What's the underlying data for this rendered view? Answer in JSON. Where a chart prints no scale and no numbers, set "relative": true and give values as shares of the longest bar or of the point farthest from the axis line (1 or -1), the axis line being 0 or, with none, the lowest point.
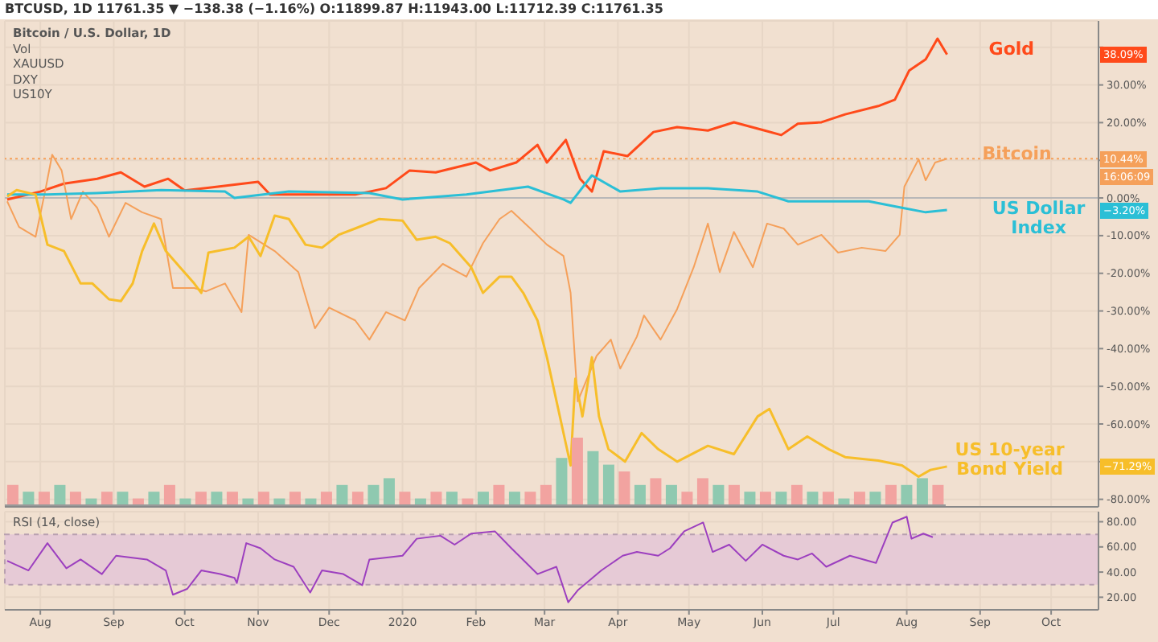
{
  "chart_data": [
    {
      "type": "line",
      "title": "BTCUSD, 1D 11761.35 ▼ −138.38 (−1.16%) O:11899.87 H:11943.00 L:11712.39 C:11761.35",
      "annotations": [
        "Bitcoin / U.S. Dollar, 1D",
        "Vol",
        "XAUUSD",
        "DXY",
        "US10Y",
        "38.09%",
        "10.44%",
        "16:06:09",
        "−3.20%",
        "−71.29%"
      ],
      "xlim": [
        "2019-07-17",
        "2020-10-21"
      ],
      "xticks": [
        {
          "value": "2019-08-01",
          "label": null
        },
        {
          "value": "2019-09-01",
          "label": null
        },
        {
          "value": "2019-10-01",
          "label": null
        },
        {
          "value": "2019-11-01",
          "label": null
        },
        {
          "value": "2019-12-01",
          "label": null
        },
        {
          "value": "2020-01-01",
          "label": null
        },
        {
          "value": "2020-02-01",
          "label": null
        },
        {
          "value": "2020-03-01",
          "label": null
        },
        {
          "value": "2020-04-01",
          "label": null
        },
        {
          "value": "2020-05-01",
          "label": null
        },
        {
          "value": "2020-06-01",
          "label": null
        },
        {
          "value": "2020-07-01",
          "label": null
        },
        {
          "value": "2020-08-01",
          "label": null
        },
        {
          "value": "2020-09-01",
          "label": null
        },
        {
          "value": "2020-10-01",
          "label": null
        }
      ],
      "ylim": [
        -82,
        47
      ],
      "yticks": [
        {
          "value": 40,
          "label": null
        },
        {
          "value": 30,
          "label": "30.00%"
        },
        {
          "value": 20,
          "label": "20.00%"
        },
        {
          "value": 10,
          "label": null
        },
        {
          "value": 0,
          "label": "0.00%"
        },
        {
          "value": -10,
          "label": "-10.00%"
        },
        {
          "value": -20,
          "label": "-20.00%"
        },
        {
          "value": -30,
          "label": "-30.00%"
        },
        {
          "value": -40,
          "label": "-40.00%"
        },
        {
          "value": -50,
          "label": "-50.00%"
        },
        {
          "value": -60,
          "label": "-60.00%"
        },
        {
          "value": -70,
          "label": null
        },
        {
          "value": -80,
          "label": "-80.00%"
        }
      ],
      "tick_labels": "y",
      "grid": true,
      "legend": "right",
      "marker": "none",
      "ref_lines": [
        {
          "axis": "y",
          "value": 10.44,
          "color": "#f5a05a",
          "line_style": "dotted"
        },
        {
          "axis": "y",
          "value": 0,
          "color": "#b8b8b8",
          "line_style": "solid"
        }
      ],
      "series": [
        {
          "name": "Gold",
          "color": "#ff4a1a",
          "x": [
            "2019-07-18",
            "2019-08-01",
            "2019-08-11",
            "2019-08-25",
            "2019-09-04",
            "2019-09-14",
            "2019-09-24",
            "2019-10-01",
            "2019-10-15",
            "2019-11-01",
            "2019-11-06",
            "2019-11-21",
            "2019-12-05",
            "2019-12-12",
            "2019-12-25",
            "2020-01-04",
            "2020-01-15",
            "2020-02-01",
            "2020-02-07",
            "2020-02-18",
            "2020-02-27",
            "2020-03-02",
            "2020-03-10",
            "2020-03-16",
            "2020-03-21",
            "2020-03-26",
            "2020-04-05",
            "2020-04-16",
            "2020-04-26",
            "2020-05-09",
            "2020-05-20",
            "2020-06-02",
            "2020-06-09",
            "2020-06-16",
            "2020-06-26",
            "2020-07-06",
            "2020-07-20",
            "2020-07-27",
            "2020-08-02",
            "2020-08-09",
            "2020-08-14",
            "2020-08-18"
          ],
          "values": [
            -0.4,
            1.7,
            3.8,
            5.1,
            6.8,
            3,
            5.1,
            2,
            3,
            4.3,
            0.9,
            0.9,
            0.9,
            0.9,
            2.6,
            7.3,
            6.8,
            9.4,
            7.3,
            9.4,
            14.1,
            9.4,
            15.4,
            5.1,
            1.7,
            12.4,
            11.1,
            17.5,
            18.8,
            17.9,
            20.1,
            17.9,
            16.7,
            19.7,
            20.1,
            22.2,
            24.4,
            26.1,
            33.8,
            36.8,
            42.3,
            38.09
          ]
        },
        {
          "name": "Bitcoin",
          "color": "#f5a05a",
          "x": [
            "2019-07-18",
            "2019-07-23",
            "2019-07-30",
            "2019-08-03",
            "2019-08-06",
            "2019-08-10",
            "2019-08-14",
            "2019-08-19",
            "2019-08-25",
            "2019-08-30",
            "2019-09-06",
            "2019-09-13",
            "2019-09-21",
            "2019-09-26",
            "2019-10-05",
            "2019-10-10",
            "2019-10-18",
            "2019-10-25",
            "2019-10-28",
            "2019-11-08",
            "2019-11-18",
            "2019-11-25",
            "2019-12-01",
            "2019-12-12",
            "2019-12-18",
            "2019-12-25",
            "2020-01-02",
            "2020-01-08",
            "2020-01-18",
            "2020-01-28",
            "2020-02-04",
            "2020-02-11",
            "2020-02-16",
            "2020-02-24",
            "2020-03-02",
            "2020-03-09",
            "2020-03-12",
            "2020-03-15",
            "2020-03-23",
            "2020-03-29",
            "2020-04-02",
            "2020-04-09",
            "2020-04-12",
            "2020-04-19",
            "2020-04-26",
            "2020-05-03",
            "2020-05-09",
            "2020-05-14",
            "2020-05-20",
            "2020-05-28",
            "2020-06-03",
            "2020-06-10",
            "2020-06-16",
            "2020-06-26",
            "2020-07-03",
            "2020-07-13",
            "2020-07-23",
            "2020-07-29",
            "2020-07-31",
            "2020-08-06",
            "2020-08-09",
            "2020-08-13",
            "2020-08-18"
          ],
          "values": [
            -0.9,
            -7.7,
            -10.3,
            1.7,
            11.5,
            7.3,
            -5.6,
            1.7,
            -2.6,
            -10.3,
            -1.3,
            -3.8,
            -5.6,
            -23.9,
            -23.9,
            -24.8,
            -22.7,
            -30.3,
            -9.8,
            -14.1,
            -19.7,
            -34.6,
            -29.1,
            -32.5,
            -37.6,
            -30.3,
            -32.5,
            -23.9,
            -17.5,
            -20.9,
            -12,
            -5.6,
            -3.4,
            -8.1,
            -12.4,
            -15.4,
            -25.2,
            -54,
            -41.9,
            -37.6,
            -45.3,
            -36.8,
            -31.2,
            -37.6,
            -29.5,
            -18.4,
            -6.8,
            -19.7,
            -9,
            -18.4,
            -6.8,
            -8.1,
            -12.4,
            -9.8,
            -14.5,
            -13.2,
            -14.1,
            -9.8,
            3,
            10.3,
            4.7,
            9.4,
            10.44
          ]
        },
        {
          "name": "US Dollar Index",
          "color": "#2bbfd6",
          "x": [
            "2019-07-18",
            "2019-08-04",
            "2019-08-25",
            "2019-09-21",
            "2019-10-18",
            "2019-10-22",
            "2019-11-14",
            "2019-12-18",
            "2020-01-01",
            "2020-01-28",
            "2020-02-23",
            "2020-03-09",
            "2020-03-12",
            "2020-03-21",
            "2020-04-02",
            "2020-04-19",
            "2020-05-09",
            "2020-05-30",
            "2020-06-12",
            "2020-07-16",
            "2020-07-30",
            "2020-08-09",
            "2020-08-18"
          ],
          "values": [
            0.9,
            0.9,
            1.3,
            2.1,
            1.7,
            0,
            1.7,
            1.3,
            -0.4,
            0.9,
            3,
            -0.4,
            -1.3,
            6,
            1.7,
            2.6,
            2.6,
            1.7,
            -0.9,
            -0.9,
            -2.6,
            -3.8,
            -3.2
          ]
        },
        {
          "name": "US 10-year Bond Yield",
          "color": "#f7be2a",
          "x": [
            "2019-07-18",
            "2019-07-22",
            "2019-07-30",
            "2019-08-04",
            "2019-08-11",
            "2019-08-18",
            "2019-08-23",
            "2019-08-30",
            "2019-09-04",
            "2019-09-09",
            "2019-09-13",
            "2019-09-18",
            "2019-09-23",
            "2019-09-29",
            "2019-10-05",
            "2019-10-08",
            "2019-10-11",
            "2019-10-22",
            "2019-10-28",
            "2019-11-02",
            "2019-11-08",
            "2019-11-14",
            "2019-11-21",
            "2019-11-28",
            "2019-12-05",
            "2019-12-12",
            "2019-12-22",
            "2020-01-01",
            "2020-01-07",
            "2020-01-15",
            "2020-01-21",
            "2020-01-30",
            "2020-02-04",
            "2020-02-11",
            "2020-02-16",
            "2020-02-21",
            "2020-02-27",
            "2020-03-02",
            "2020-03-09",
            "2020-03-12",
            "2020-03-14",
            "2020-03-17",
            "2020-03-21",
            "2020-03-24",
            "2020-03-28",
            "2020-04-04",
            "2020-04-11",
            "2020-04-18",
            "2020-04-26",
            "2020-05-09",
            "2020-05-20",
            "2020-05-30",
            "2020-06-04",
            "2020-06-12",
            "2020-06-20",
            "2020-06-29",
            "2020-07-06",
            "2020-07-20",
            "2020-07-30",
            "2020-08-06",
            "2020-08-11",
            "2020-08-18"
          ],
          "values": [
            0.4,
            2.1,
            0.9,
            -12.4,
            -14.1,
            -22.7,
            -22.7,
            -26.9,
            -27.4,
            -22.7,
            -14.1,
            -6.8,
            -14.1,
            -18.4,
            -22.7,
            -25.2,
            -14.5,
            -13.2,
            -10.3,
            -15.4,
            -4.7,
            -5.6,
            -12.4,
            -13.2,
            -9.8,
            -8.1,
            -5.6,
            -6,
            -11.1,
            -10.3,
            -12,
            -18.4,
            -25.2,
            -20.9,
            -20.9,
            -25.2,
            -32.5,
            -42.3,
            -62.4,
            -71,
            -48,
            -58,
            -42.3,
            -58,
            -66.7,
            -70,
            -62.4,
            -66.7,
            -70,
            -65.8,
            -68,
            -58,
            -56,
            -66.7,
            -63.3,
            -66.7,
            -68.8,
            -69.7,
            -71,
            -74,
            -72.2,
            -71.29
          ]
        }
      ]
    },
    {
      "type": "bar",
      "relative": true,
      "tick_labels": false,
      "categories": [
        null,
        null,
        null,
        null,
        null,
        null,
        null,
        null,
        null,
        null,
        null,
        null,
        null,
        null,
        null,
        null,
        null,
        null,
        null,
        null,
        null,
        null,
        null,
        null,
        null,
        null,
        null,
        null,
        null,
        null,
        null,
        null,
        null,
        null,
        null,
        null,
        null,
        null,
        null,
        null,
        null,
        null,
        null,
        null,
        null,
        null,
        null,
        null,
        null,
        null,
        null,
        null,
        null,
        null,
        null,
        null,
        null,
        null,
        null,
        null
      ],
      "values": [
        0.3,
        0.2,
        0.2,
        0.3,
        0.2,
        0.1,
        0.2,
        0.2,
        0.1,
        0.2,
        0.3,
        0.1,
        0.2,
        0.2,
        0.2,
        0.1,
        0.2,
        0.1,
        0.2,
        0.1,
        0.2,
        0.3,
        0.2,
        0.3,
        0.4,
        0.2,
        0.1,
        0.2,
        0.2,
        0.1,
        0.2,
        0.3,
        0.2,
        0.2,
        0.3,
        0.7,
        1,
        0.8,
        0.6,
        0.5,
        0.3,
        0.4,
        0.3,
        0.2,
        0.4,
        0.3,
        0.3,
        0.2,
        0.2,
        0.2,
        0.3,
        0.2,
        0.2,
        0.1,
        0.2,
        0.2,
        0.3,
        0.3,
        0.4,
        0.3
      ],
      "colors": [
        "#f2a3a0",
        "#8fc9b0",
        "#f2a3a0",
        "#8fc9b0",
        "#f2a3a0",
        "#8fc9b0",
        "#f2a3a0",
        "#8fc9b0",
        "#f2a3a0",
        "#8fc9b0",
        "#f2a3a0",
        "#8fc9b0",
        "#f2a3a0",
        "#8fc9b0",
        "#f2a3a0",
        "#8fc9b0",
        "#f2a3a0",
        "#8fc9b0",
        "#f2a3a0",
        "#8fc9b0",
        "#f2a3a0",
        "#8fc9b0",
        "#f2a3a0",
        "#8fc9b0",
        "#8fc9b0",
        "#f2a3a0",
        "#8fc9b0",
        "#f2a3a0",
        "#8fc9b0",
        "#f2a3a0",
        "#8fc9b0",
        "#f2a3a0",
        "#8fc9b0",
        "#f2a3a0",
        "#f2a3a0",
        "#8fc9b0",
        "#f2a3a0",
        "#8fc9b0",
        "#8fc9b0",
        "#f2a3a0",
        "#8fc9b0",
        "#f2a3a0",
        "#8fc9b0",
        "#f2a3a0",
        "#f2a3a0",
        "#8fc9b0",
        "#f2a3a0",
        "#8fc9b0",
        "#f2a3a0",
        "#8fc9b0",
        "#f2a3a0",
        "#8fc9b0",
        "#f2a3a0",
        "#8fc9b0",
        "#f2a3a0",
        "#8fc9b0",
        "#f2a3a0",
        "#8fc9b0",
        "#8fc9b0",
        "#f2a3a0"
      ]
    },
    {
      "type": "line",
      "title": "RSI (14, close)",
      "xlim": [
        "2019-07-17",
        "2020-10-21"
      ],
      "xticks": [
        {
          "value": "2019-08-01",
          "label": "Aug"
        },
        {
          "value": "2019-09-01",
          "label": "Sep"
        },
        {
          "value": "2019-10-01",
          "label": "Oct"
        },
        {
          "value": "2019-11-01",
          "label": "Nov"
        },
        {
          "value": "2019-12-01",
          "label": "Dec"
        },
        {
          "value": "2020-01-01",
          "label": "2020"
        },
        {
          "value": "2020-02-01",
          "label": "Feb"
        },
        {
          "value": "2020-03-01",
          "label": "Mar"
        },
        {
          "value": "2020-04-01",
          "label": "Apr"
        },
        {
          "value": "2020-05-01",
          "label": "May"
        },
        {
          "value": "2020-06-01",
          "label": "Jun"
        },
        {
          "value": "2020-07-01",
          "label": "Jul"
        },
        {
          "value": "2020-08-01",
          "label": "Aug"
        },
        {
          "value": "2020-09-01",
          "label": "Sep"
        },
        {
          "value": "2020-10-01",
          "label": "Oct"
        }
      ],
      "ylim": [
        10,
        88
      ],
      "yticks": [
        {
          "value": 20,
          "label": "20.00"
        },
        {
          "value": 40,
          "label": "40.00"
        },
        {
          "value": 60,
          "label": "60.00"
        },
        {
          "value": 80,
          "label": "80.00"
        }
      ],
      "grid": true,
      "marker": "none",
      "bands": [
        {
          "axis": "y",
          "from": 30,
          "to": 70,
          "color": "#e6cad6"
        }
      ],
      "series": [
        {
          "color": "#9c3fbf",
          "x": [
            "2019-07-18",
            "2019-07-27",
            "2019-08-04",
            "2019-08-12",
            "2019-08-18",
            "2019-08-27",
            "2019-09-02",
            "2019-09-15",
            "2019-09-23",
            "2019-09-26",
            "2019-10-02",
            "2019-10-08",
            "2019-10-16",
            "2019-10-22",
            "2019-10-23",
            "2019-10-27",
            "2019-11-02",
            "2019-11-08",
            "2019-11-16",
            "2019-11-23",
            "2019-11-28",
            "2019-12-07",
            "2019-12-15",
            "2019-12-18",
            "2020-01-01",
            "2020-01-07",
            "2020-01-17",
            "2020-01-23",
            "2020-01-30",
            "2020-02-09",
            "2020-02-16",
            "2020-02-27",
            "2020-03-06",
            "2020-03-11",
            "2020-03-15",
            "2020-03-25",
            "2020-04-03",
            "2020-04-09",
            "2020-04-18",
            "2020-04-23",
            "2020-04-29",
            "2020-05-07",
            "2020-05-11",
            "2020-05-18",
            "2020-05-25",
            "2020-06-01",
            "2020-06-10",
            "2020-06-16",
            "2020-06-22",
            "2020-06-28",
            "2020-07-08",
            "2020-07-19",
            "2020-07-26",
            "2020-08-01",
            "2020-08-03",
            "2020-08-08",
            "2020-08-12"
          ],
          "values": [
            48.9,
            41.3,
            63,
            43,
            50,
            38.4,
            53,
            50,
            41.3,
            22,
            26.6,
            41.3,
            38.4,
            35.4,
            31.3,
            63,
            58.9,
            50,
            44.2,
            23.7,
            41.3,
            38.4,
            29.6,
            50,
            53,
            66.5,
            68.9,
            61.8,
            70.6,
            72.4,
            58.9,
            38.4,
            44.2,
            16,
            25.5,
            41.3,
            53,
            56,
            53,
            58.9,
            72.4,
            79.4,
            56,
            61.8,
            48.9,
            61.8,
            53,
            50,
            54.8,
            44.2,
            53,
            47.2,
            79.4,
            84,
            66.5,
            70.6,
            67.7
          ]
        }
      ]
    }
  ]
}
